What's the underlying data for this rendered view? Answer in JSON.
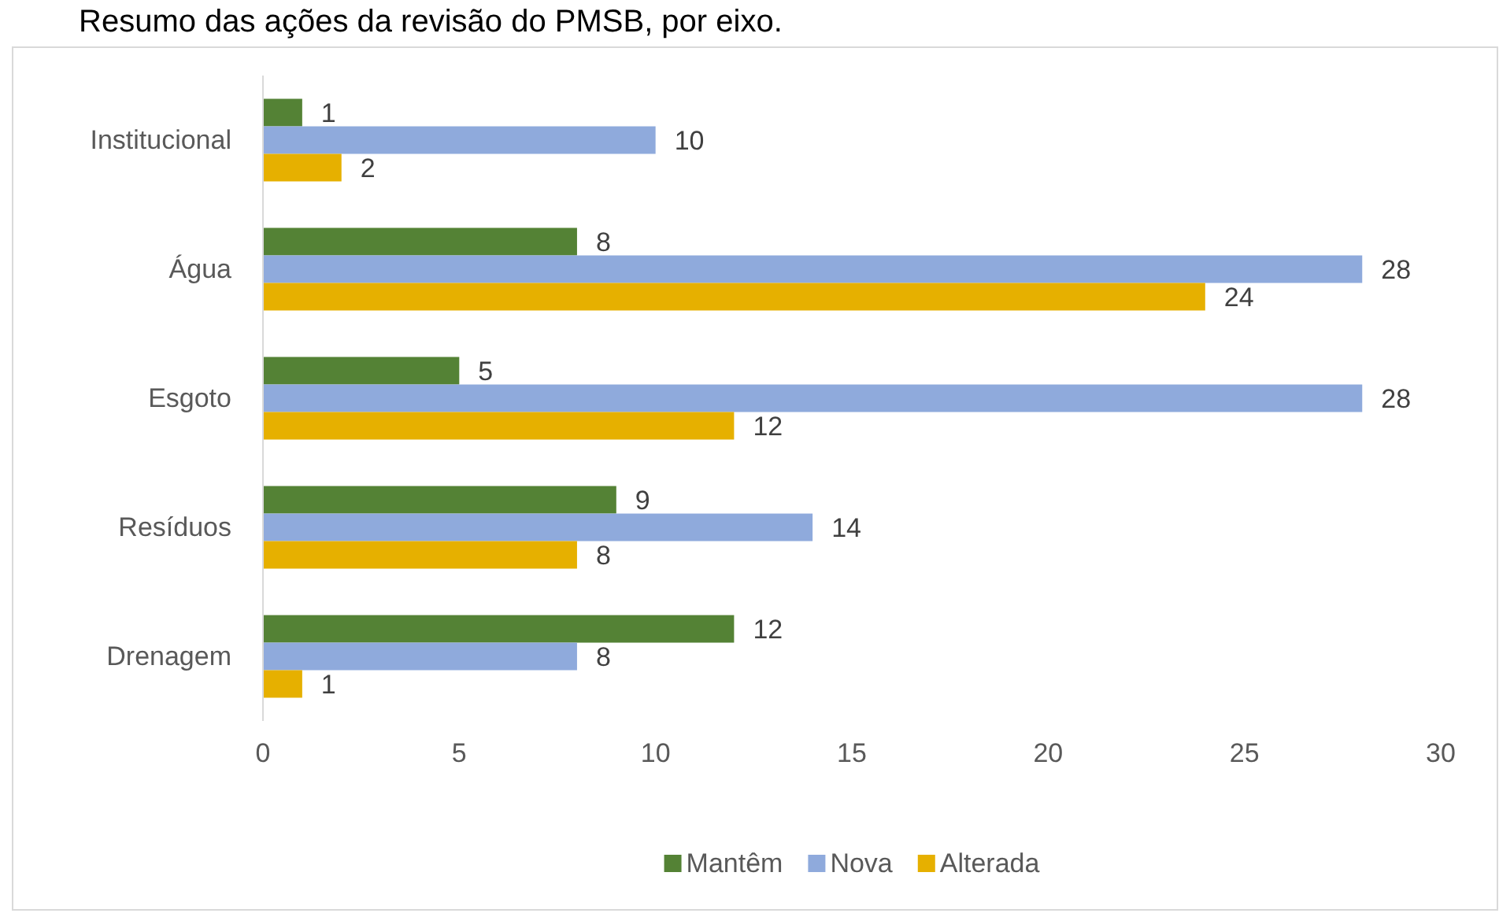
{
  "chart_data": {
    "type": "bar",
    "orientation": "horizontal",
    "title": "Resumo das ações da revisão do PMSB, por eixo.",
    "categories": [
      "Institucional",
      "Água",
      "Esgoto",
      "Resíduos",
      "Drenagem"
    ],
    "series": [
      {
        "name": "Mantêm",
        "color": "#548235",
        "values": [
          1,
          8,
          5,
          9,
          12
        ]
      },
      {
        "name": "Nova",
        "color": "#8faadc",
        "values": [
          10,
          28,
          28,
          14,
          8
        ]
      },
      {
        "name": "Alterada",
        "color": "#e6b000",
        "values": [
          2,
          24,
          12,
          8,
          1
        ]
      }
    ],
    "xlim": [
      0,
      30
    ],
    "xticks": [
      0,
      5,
      10,
      15,
      20,
      25,
      30
    ],
    "data_labels": true,
    "legend": "bottom"
  }
}
